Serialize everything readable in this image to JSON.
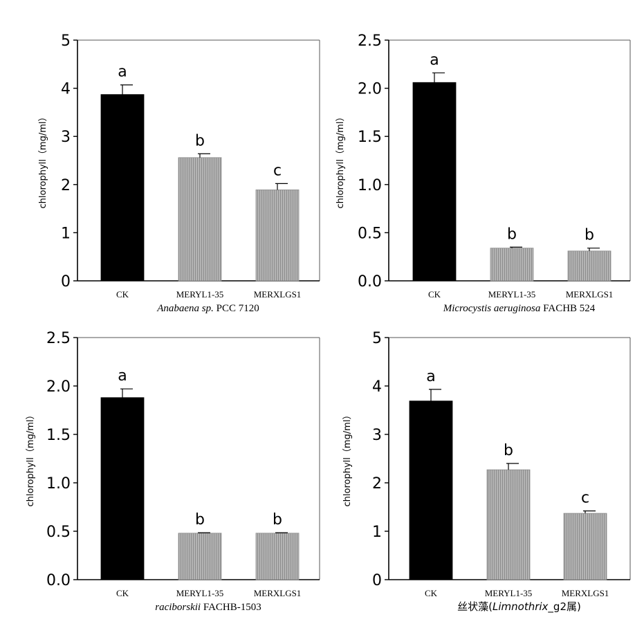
{
  "colors": {
    "ck_bar": "#000000",
    "treatment_bar": "#a8a8a8",
    "axis": "#000000",
    "frame": "#555555"
  },
  "chart_data": [
    {
      "type": "bar",
      "categories": [
        "CK",
        "MERYL1-35",
        "MERXLGS1"
      ],
      "values": [
        3.87,
        2.56,
        1.89
      ],
      "errors": [
        0.2,
        0.08,
        0.13
      ],
      "significance": [
        "a",
        "b",
        "c"
      ],
      "ylabel": "chlorophyll（mg/ml）",
      "ylim": [
        0,
        5
      ],
      "yticks": [
        "0",
        "1",
        "2",
        "3",
        "4",
        "5"
      ],
      "caption_italic": "Anabaena sp.",
      "caption_normal": " PCC 7120"
    },
    {
      "type": "bar",
      "categories": [
        "CK",
        "MERYL1-35",
        "MERXLGS1"
      ],
      "values": [
        2.06,
        0.34,
        0.31
      ],
      "errors": [
        0.1,
        0.01,
        0.03
      ],
      "significance": [
        "a",
        "b",
        "b"
      ],
      "ylabel": "chlorophyll（mg/ml）",
      "ylim": [
        0,
        2.5
      ],
      "yticks": [
        "0.0",
        "0.5",
        "1.0",
        "1.5",
        "2.0",
        "2.5"
      ],
      "caption_italic": "Microcystis aeruginosa",
      "caption_normal": " FACHB 524"
    },
    {
      "type": "bar",
      "categories": [
        "CK",
        "MERYL1-35",
        "MERXLGS1"
      ],
      "values": [
        1.88,
        0.48,
        0.48
      ],
      "errors": [
        0.09,
        0.005,
        0.005
      ],
      "significance": [
        "a",
        "b",
        "b"
      ],
      "ylabel": "chlorophyll（mg/ml）",
      "ylim": [
        0,
        2.5
      ],
      "yticks": [
        "0.0",
        "0.5",
        "1.0",
        "1.5",
        "2.0",
        "2.5"
      ],
      "caption_italic": "raciborskii",
      "caption_normal": " FACHB-1503"
    },
    {
      "type": "bar",
      "categories": [
        "CK",
        "MERYL1-35",
        "MERXLGS1"
      ],
      "values": [
        3.69,
        2.27,
        1.37
      ],
      "errors": [
        0.24,
        0.13,
        0.05
      ],
      "significance": [
        "a",
        "b",
        "c"
      ],
      "ylabel": "chlorophyll（mg/ml）",
      "ylim": [
        0,
        5
      ],
      "yticks": [
        "0",
        "1",
        "2",
        "3",
        "4",
        "5"
      ],
      "caption_prefix": "丝状藻(",
      "caption_italic": "Limnothrix",
      "caption_normal": "_g2属)"
    }
  ]
}
